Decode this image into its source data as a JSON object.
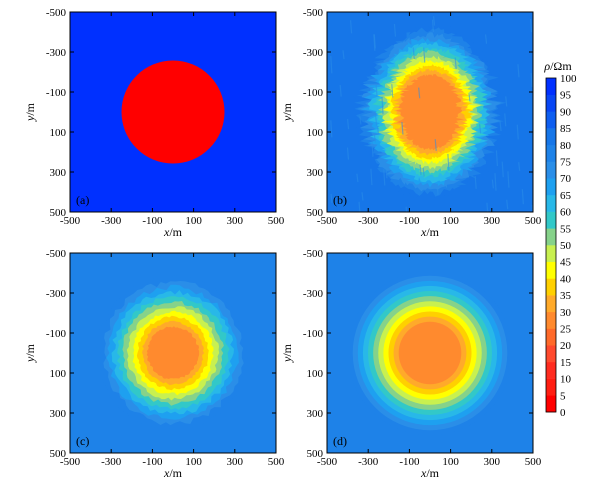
{
  "chart_data": {
    "type": "heatmap",
    "panels": [
      {
        "label": "(a)",
        "xlabel": "x/m",
        "ylabel": "y/m",
        "xlim": [
          -500,
          500
        ],
        "ylim": [
          -500,
          500
        ],
        "x_ticks": [
          "-500",
          "-300",
          "-100",
          "100",
          "300",
          "500"
        ],
        "y_ticks": [
          "-500",
          "-300",
          "-100",
          "100",
          "300",
          "500"
        ],
        "background_resistivity": 100,
        "anomaly_resistivity": 0,
        "anomaly": {
          "shape": "circle",
          "center_x": 0,
          "center_y": 0,
          "radius": 250
        }
      },
      {
        "label": "(b)",
        "xlabel": "x/m",
        "ylabel": "y/m",
        "xlim": [
          -500,
          500
        ],
        "ylim": [
          -500,
          500
        ],
        "x_ticks": [
          "-500",
          "-300",
          "-100",
          "100",
          "300",
          "500"
        ],
        "y_ticks": [
          "-500",
          "-300",
          "-100",
          "100",
          "300",
          "500"
        ],
        "background_resistivity": 80,
        "anomaly_resistivity": 25,
        "anomaly": {
          "shape": "noisy ellipse",
          "center_x": 0,
          "center_y": 0,
          "radius_x": 340,
          "radius_y": 420
        }
      },
      {
        "label": "(c)",
        "xlabel": "x/m",
        "ylabel": "y/m",
        "xlim": [
          -500,
          500
        ],
        "ylim": [
          -500,
          500
        ],
        "x_ticks": [
          "-500",
          "-300",
          "-100",
          "100",
          "300",
          "500"
        ],
        "y_ticks": [
          "-500",
          "-300",
          "-100",
          "100",
          "300",
          "500"
        ],
        "background_resistivity": 78,
        "anomaly_resistivity": 28,
        "anomaly": {
          "shape": "smoothed circle",
          "center_x": 0,
          "center_y": 0,
          "radius": 360
        }
      },
      {
        "label": "(d)",
        "xlabel": "x/m",
        "ylabel": "y/m",
        "xlim": [
          -500,
          500
        ],
        "ylim": [
          -500,
          500
        ],
        "x_ticks": [
          "-500",
          "-300",
          "-100",
          "100",
          "300",
          "500"
        ],
        "y_ticks": [
          "-500",
          "-300",
          "-100",
          "100",
          "300",
          "500"
        ],
        "background_resistivity": 78,
        "anomaly_resistivity": 28,
        "anomaly": {
          "shape": "concentric circles",
          "center_x": 0,
          "center_y": 0,
          "radius": 400
        }
      }
    ],
    "colorbar": {
      "title": "ρ/Ωm",
      "min": 0,
      "max": 100,
      "step": 5,
      "tick_labels": [
        "100",
        "95",
        "90",
        "85",
        "80",
        "75",
        "70",
        "65",
        "60",
        "55",
        "50",
        "45",
        "40",
        "35",
        "30",
        "25",
        "20",
        "15",
        "10",
        "5",
        "0"
      ],
      "colors": [
        "#ff0000",
        "#ff1e12",
        "#ff2c20",
        "#ff4a2e",
        "#ff6a2a",
        "#ff8a2e",
        "#ffaa2a",
        "#ffd000",
        "#ffff00",
        "#c8f050",
        "#86d28a",
        "#32c8c8",
        "#28b8e8",
        "#1ea0f0",
        "#2a8ee8",
        "#1e82e8",
        "#1676e8",
        "#0e5ef0",
        "#0846f4",
        "#0030ff"
      ]
    }
  }
}
